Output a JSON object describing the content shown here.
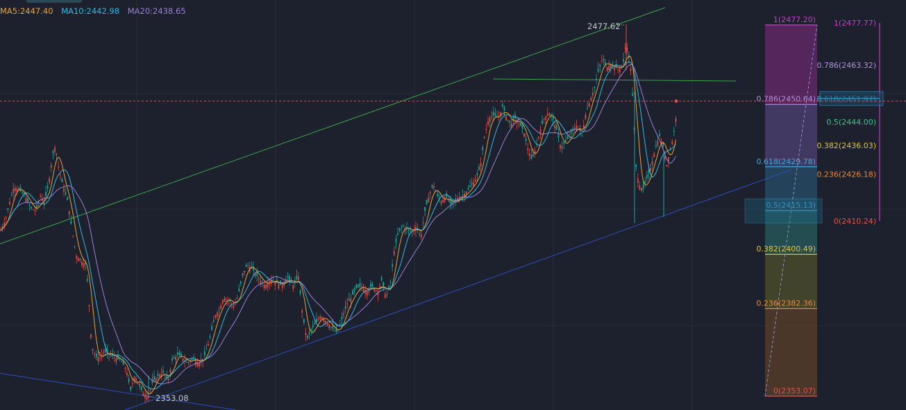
{
  "legend": {
    "ma5": "MA5:2447.40",
    "ma10": "MA10:2442.98",
    "ma20": "MA20:2438.65"
  },
  "colors": {
    "background": "#1c212d",
    "grid": "#2a3a3f",
    "ma5": "#e8a33a",
    "ma10": "#33b8e0",
    "ma20": "#9d7fd6",
    "up_candle": "#e24b45",
    "down_candle": "#1aa39a",
    "channel_upper": "#3da54a",
    "channel_lower": "#2a4fbf",
    "resistance": "#3da54a",
    "current_price_line": "#c9575c"
  },
  "annotations": {
    "high_label": "2477.62",
    "low_label": "2353.08"
  },
  "fib_left": {
    "levels": [
      {
        "label": "1(2477.20)",
        "price": 2477.2,
        "color": "#c53ec8"
      },
      {
        "label": "0.786(2450.64)",
        "price": 2450.64,
        "color": "#b48ee0"
      },
      {
        "label": "0.618(2429.78)",
        "price": 2429.78,
        "color": "#3fa8dc"
      },
      {
        "label": "0.5(2415.13)",
        "price": 2415.13,
        "color": "#3fa8dc"
      },
      {
        "label": "0.382(2400.49)",
        "price": 2400.49,
        "color": "#e6c23a"
      },
      {
        "label": "0.236(2382.36)",
        "price": 2382.36,
        "color": "#e8873a"
      },
      {
        "label": "0(2353.07)",
        "price": 2353.07,
        "color": "#e0534c"
      }
    ]
  },
  "fib_right": {
    "levels": [
      {
        "label": "1(2477.77)",
        "price": 2477.77,
        "color": "#c53ec8"
      },
      {
        "label": "0.786(2463.32)",
        "price": 2463.32,
        "color": "#b48ee0"
      },
      {
        "label": "0.618(2451.97)",
        "price": 2451.97,
        "color": "#3fa8dc"
      },
      {
        "label": "0.5(2444.00)",
        "price": 2444.0,
        "color": "#3dc48a"
      },
      {
        "label": "0.382(2436.03)",
        "price": 2436.03,
        "color": "#e6c23a"
      },
      {
        "label": "0.236(2426.18)",
        "price": 2426.18,
        "color": "#e8873a"
      },
      {
        "label": "0(2410.24)",
        "price": 2410.24,
        "color": "#e0534c"
      }
    ]
  },
  "chart_data": {
    "type": "candlestick",
    "series": [
      {
        "name": "MA5",
        "last": 2447.4
      },
      {
        "name": "MA10",
        "last": 2442.98
      },
      {
        "name": "MA20",
        "last": 2438.65
      }
    ],
    "price_path": [
      [
        0,
        2408
      ],
      [
        8,
        2412
      ],
      [
        14,
        2418
      ],
      [
        20,
        2423
      ],
      [
        28,
        2422
      ],
      [
        36,
        2420
      ],
      [
        44,
        2416
      ],
      [
        52,
        2415
      ],
      [
        58,
        2420
      ],
      [
        64,
        2418
      ],
      [
        70,
        2424
      ],
      [
        76,
        2434
      ],
      [
        80,
        2437
      ],
      [
        84,
        2430
      ],
      [
        90,
        2424
      ],
      [
        98,
        2418
      ],
      [
        104,
        2408
      ],
      [
        110,
        2400
      ],
      [
        118,
        2398
      ],
      [
        124,
        2397
      ],
      [
        128,
        2385
      ],
      [
        132,
        2370
      ],
      [
        138,
        2366
      ],
      [
        144,
        2366
      ],
      [
        150,
        2368
      ],
      [
        158,
        2367
      ],
      [
        166,
        2366
      ],
      [
        174,
        2365
      ],
      [
        182,
        2362
      ],
      [
        188,
        2355
      ],
      [
        194,
        2360
      ],
      [
        200,
        2357
      ],
      [
        206,
        2354
      ],
      [
        214,
        2353
      ],
      [
        220,
        2358
      ],
      [
        228,
        2360
      ],
      [
        236,
        2361
      ],
      [
        242,
        2358
      ],
      [
        248,
        2365
      ],
      [
        256,
        2367
      ],
      [
        262,
        2366
      ],
      [
        270,
        2364
      ],
      [
        278,
        2366
      ],
      [
        286,
        2364
      ],
      [
        294,
        2366
      ],
      [
        302,
        2372
      ],
      [
        310,
        2380
      ],
      [
        316,
        2382
      ],
      [
        322,
        2386
      ],
      [
        330,
        2385
      ],
      [
        338,
        2383
      ],
      [
        344,
        2388
      ],
      [
        350,
        2394
      ],
      [
        356,
        2397
      ],
      [
        362,
        2396
      ],
      [
        368,
        2394
      ],
      [
        374,
        2392
      ],
      [
        382,
        2390
      ],
      [
        390,
        2392
      ],
      [
        398,
        2391
      ],
      [
        406,
        2390
      ],
      [
        414,
        2393
      ],
      [
        422,
        2390
      ],
      [
        430,
        2393
      ],
      [
        436,
        2380
      ],
      [
        442,
        2372
      ],
      [
        448,
        2375
      ],
      [
        456,
        2378
      ],
      [
        462,
        2380
      ],
      [
        470,
        2378
      ],
      [
        478,
        2376
      ],
      [
        486,
        2374
      ],
      [
        494,
        2380
      ],
      [
        500,
        2384
      ],
      [
        506,
        2386
      ],
      [
        512,
        2389
      ],
      [
        520,
        2390
      ],
      [
        528,
        2388
      ],
      [
        536,
        2390
      ],
      [
        544,
        2388
      ],
      [
        550,
        2392
      ],
      [
        556,
        2386
      ],
      [
        562,
        2390
      ],
      [
        568,
        2402
      ],
      [
        574,
        2408
      ],
      [
        580,
        2410
      ],
      [
        586,
        2409
      ],
      [
        594,
        2408
      ],
      [
        600,
        2410
      ],
      [
        606,
        2406
      ],
      [
        612,
        2415
      ],
      [
        618,
        2420
      ],
      [
        624,
        2424
      ],
      [
        630,
        2420
      ],
      [
        636,
        2418
      ],
      [
        642,
        2420
      ],
      [
        650,
        2417
      ],
      [
        658,
        2419
      ],
      [
        666,
        2420
      ],
      [
        674,
        2422
      ],
      [
        680,
        2424
      ],
      [
        686,
        2426
      ],
      [
        692,
        2430
      ],
      [
        698,
        2440
      ],
      [
        704,
        2446
      ],
      [
        712,
        2447
      ],
      [
        718,
        2446
      ],
      [
        724,
        2450
      ],
      [
        730,
        2446
      ],
      [
        736,
        2444
      ],
      [
        742,
        2446
      ],
      [
        748,
        2444
      ],
      [
        754,
        2442
      ],
      [
        760,
        2436
      ],
      [
        766,
        2432
      ],
      [
        772,
        2436
      ],
      [
        778,
        2442
      ],
      [
        784,
        2446
      ],
      [
        790,
        2448
      ],
      [
        796,
        2446
      ],
      [
        802,
        2442
      ],
      [
        808,
        2436
      ],
      [
        814,
        2438
      ],
      [
        820,
        2440
      ],
      [
        826,
        2442
      ],
      [
        832,
        2444
      ],
      [
        838,
        2440
      ],
      [
        844,
        2448
      ],
      [
        850,
        2452
      ],
      [
        856,
        2456
      ],
      [
        862,
        2462
      ],
      [
        868,
        2466
      ],
      [
        874,
        2463
      ],
      [
        880,
        2464
      ],
      [
        886,
        2463
      ],
      [
        892,
        2462
      ],
      [
        898,
        2465
      ],
      [
        902,
        2472
      ],
      [
        904,
        2468
      ],
      [
        908,
        2464
      ],
      [
        912,
        2450
      ],
      [
        916,
        2430
      ],
      [
        920,
        2424
      ],
      [
        926,
        2422
      ],
      [
        932,
        2426
      ],
      [
        938,
        2430
      ],
      [
        944,
        2436
      ],
      [
        950,
        2440
      ],
      [
        956,
        2436
      ],
      [
        960,
        2430
      ],
      [
        966,
        2436
      ],
      [
        970,
        2440
      ],
      [
        974,
        2447
      ]
    ]
  }
}
